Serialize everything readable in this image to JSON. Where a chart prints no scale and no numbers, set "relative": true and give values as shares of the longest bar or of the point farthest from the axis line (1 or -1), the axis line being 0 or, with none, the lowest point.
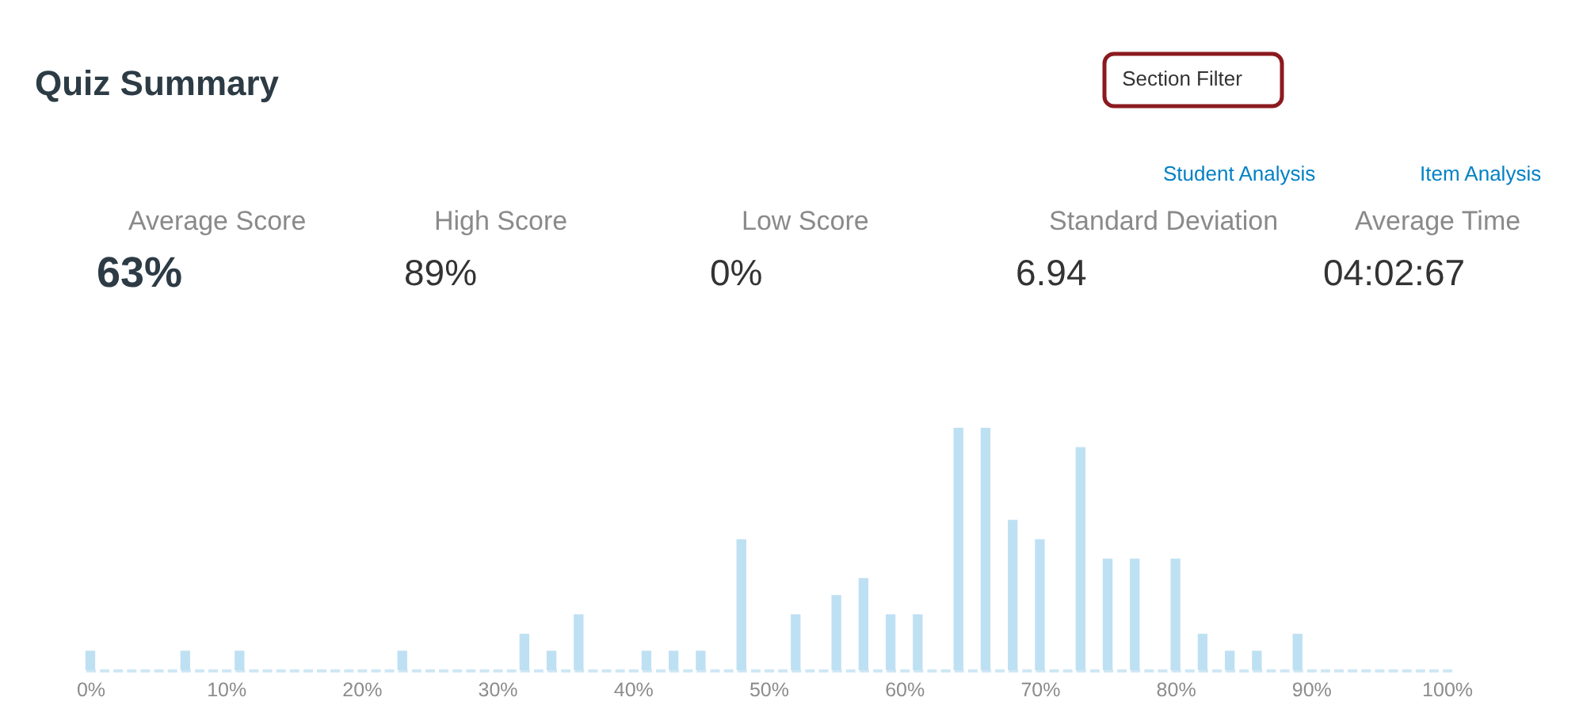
{
  "chart_data": [
    {
      "type": "other",
      "title": "Quiz Summary",
      "annotations": [
        "Section Filter",
        "Student Analysis",
        "Item Analysis",
        "Average Score",
        "High Score",
        "Low Score",
        "Standard Deviation",
        "Average Time",
        "63%",
        "89%",
        "0%",
        "6.94",
        "04:02:67"
      ]
    },
    {
      "type": "bar",
      "relative": true,
      "color": "#bee0f3",
      "x": [
        0,
        7,
        11,
        23,
        32,
        34,
        36,
        41,
        43,
        45,
        48,
        52,
        55,
        57,
        59,
        61,
        64,
        66,
        68,
        70,
        73,
        75,
        77,
        80,
        82,
        84,
        86,
        89
      ],
      "values": [
        0.08,
        0.08,
        0.08,
        0.08,
        0.15,
        0.08,
        0.23,
        0.08,
        0.08,
        0.08,
        0.54,
        0.23,
        0.31,
        0.38,
        0.23,
        0.23,
        1,
        1,
        0.62,
        0.54,
        0.92,
        0.46,
        0.46,
        0.46,
        0.15,
        0.08,
        0.08,
        0.15
      ],
      "xlim": [
        -0.5,
        100.5
      ],
      "xticks": [
        {
          "value": 0,
          "label": "0%"
        },
        {
          "value": 10,
          "label": "10%"
        },
        {
          "value": 20,
          "label": "20%"
        },
        {
          "value": 30,
          "label": "30%"
        },
        {
          "value": 40,
          "label": "40%"
        },
        {
          "value": 50,
          "label": "50%"
        },
        {
          "value": 60,
          "label": "60%"
        },
        {
          "value": 70,
          "label": "70%"
        },
        {
          "value": 80,
          "label": "80%"
        },
        {
          "value": 90,
          "label": "90%"
        },
        {
          "value": 100,
          "label": "100%"
        }
      ]
    }
  ]
}
